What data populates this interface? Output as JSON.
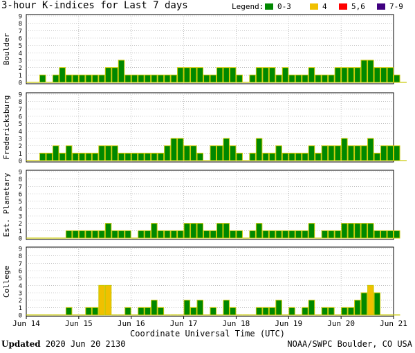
{
  "title": "3-hour K-indices for Last 7 days",
  "legend": {
    "label": "Legend:",
    "items": [
      {
        "label": "0-3",
        "color": "#008800"
      },
      {
        "label": "4",
        "color": "#f0c000"
      },
      {
        "label": "5,6",
        "color": "#ff0000"
      },
      {
        "label": "7-9",
        "color": "#400080"
      }
    ]
  },
  "footer": {
    "updated_label": "Updated",
    "updated_value": "2020 Jun 20 2130",
    "credit": "NOAA/SWPC Boulder, CO USA"
  },
  "chart_data": {
    "type": "bar",
    "xlabel": "Coordinate Universal Time (UTC)",
    "x_ticks": [
      "Jun 14",
      "Jun 15",
      "Jun 16",
      "Jun 17",
      "Jun 18",
      "Jun 19",
      "Jun 20",
      "Jun 21"
    ],
    "ylim": [
      0,
      9
    ],
    "y_ticks": [
      0,
      1,
      2,
      3,
      4,
      5,
      6,
      7,
      8,
      9
    ],
    "bins_per_day": 8,
    "color_scale": [
      {
        "range": "0-3",
        "color": "#008800"
      },
      {
        "range": "4",
        "color": "#f0c000"
      },
      {
        "range": "5,6",
        "color": "#ff0000"
      },
      {
        "range": "7-9",
        "color": "#400080"
      }
    ],
    "series": [
      {
        "name": "Boulder",
        "values": [
          0,
          0,
          1,
          0,
          1,
          2,
          1,
          1,
          1,
          1,
          1,
          1,
          2,
          2,
          3,
          1,
          1,
          1,
          1,
          1,
          1,
          1,
          1,
          2,
          2,
          2,
          2,
          1,
          1,
          2,
          2,
          2,
          1,
          0,
          1,
          2,
          2,
          2,
          1,
          2,
          1,
          1,
          1,
          2,
          1,
          1,
          1,
          2,
          2,
          2,
          2,
          3,
          3,
          2,
          2,
          2,
          1,
          0
        ]
      },
      {
        "name": "Fredericksburg",
        "values": [
          0,
          0,
          1,
          1,
          2,
          1,
          2,
          1,
          1,
          1,
          1,
          2,
          2,
          2,
          1,
          1,
          1,
          1,
          1,
          1,
          1,
          2,
          3,
          3,
          2,
          2,
          1,
          0,
          2,
          2,
          3,
          2,
          1,
          0,
          1,
          3,
          1,
          1,
          2,
          1,
          1,
          1,
          1,
          2,
          1,
          2,
          2,
          2,
          3,
          2,
          2,
          2,
          3,
          1,
          2,
          2,
          2,
          0
        ]
      },
      {
        "name": "Est. Planetary",
        "values": [
          0,
          0,
          0,
          0,
          0,
          0,
          1,
          1,
          1,
          1,
          1,
          1,
          2,
          1,
          1,
          1,
          0,
          1,
          1,
          2,
          1,
          1,
          1,
          1,
          2,
          2,
          2,
          1,
          1,
          2,
          2,
          1,
          1,
          0,
          1,
          2,
          1,
          1,
          1,
          1,
          1,
          1,
          1,
          2,
          0,
          1,
          1,
          1,
          2,
          2,
          2,
          2,
          2,
          1,
          1,
          1,
          1
        ]
      },
      {
        "name": "College",
        "values": [
          0,
          0,
          0,
          0,
          0,
          0,
          1,
          0,
          0,
          1,
          1,
          4,
          4,
          0,
          0,
          1,
          0,
          1,
          1,
          2,
          1,
          0,
          0,
          0,
          2,
          1,
          2,
          0,
          1,
          0,
          2,
          1,
          0,
          0,
          0,
          1,
          1,
          1,
          2,
          0,
          1,
          0,
          1,
          2,
          0,
          1,
          1,
          0,
          1,
          1,
          2,
          3,
          4,
          3,
          0,
          0,
          0
        ]
      }
    ]
  }
}
